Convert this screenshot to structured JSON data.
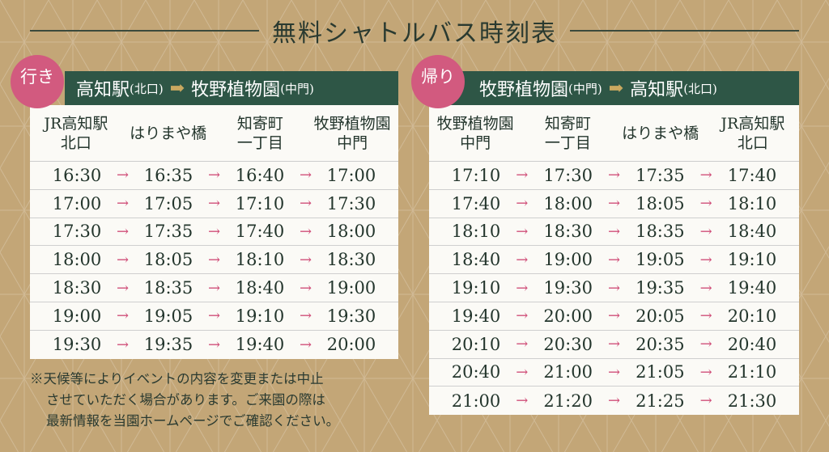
{
  "title": "無料シャトルバス時刻表",
  "outbound": {
    "badge": "行き",
    "from": "高知駅",
    "from_sub": "(北口)",
    "to": "牧野植物園",
    "to_sub": "(中門)",
    "columns": [
      "JR高知駅\n北口",
      "はりまや橋",
      "知寄町\n一丁目",
      "牧野植物園\n中門"
    ],
    "rows": [
      [
        "16:30",
        "16:35",
        "16:40",
        "17:00"
      ],
      [
        "17:00",
        "17:05",
        "17:10",
        "17:30"
      ],
      [
        "17:30",
        "17:35",
        "17:40",
        "18:00"
      ],
      [
        "18:00",
        "18:05",
        "18:10",
        "18:30"
      ],
      [
        "18:30",
        "18:35",
        "18:40",
        "19:00"
      ],
      [
        "19:00",
        "19:05",
        "19:10",
        "19:30"
      ],
      [
        "19:30",
        "19:35",
        "19:40",
        "20:00"
      ]
    ]
  },
  "return": {
    "badge": "帰り",
    "from": "牧野植物園",
    "from_sub": "(中門)",
    "to": "高知駅",
    "to_sub": "(北口)",
    "columns": [
      "牧野植物園\n中門",
      "知寄町\n一丁目",
      "はりまや橋",
      "JR高知駅\n北口"
    ],
    "rows": [
      [
        "17:10",
        "17:30",
        "17:35",
        "17:40"
      ],
      [
        "17:40",
        "18:00",
        "18:05",
        "18:10"
      ],
      [
        "18:10",
        "18:30",
        "18:35",
        "18:40"
      ],
      [
        "18:40",
        "19:00",
        "19:05",
        "19:10"
      ],
      [
        "19:10",
        "19:30",
        "19:35",
        "19:40"
      ],
      [
        "19:40",
        "20:00",
        "20:05",
        "20:10"
      ],
      [
        "20:10",
        "20:30",
        "20:35",
        "20:40"
      ],
      [
        "20:40",
        "21:00",
        "21:05",
        "21:10"
      ],
      [
        "21:00",
        "21:20",
        "21:25",
        "21:30"
      ]
    ]
  },
  "arrow": "→",
  "header_arrow": "➡",
  "note": [
    "※天候等によりイベントの内容を変更または中止",
    "させていただく場合があります。ご来園の際は",
    "最新情報を当園ホームページでご確認ください。"
  ],
  "colors": {
    "background": "#c3a677",
    "header": "#2e5646",
    "badge": "#d25a7f",
    "arrow": "#d0507a"
  }
}
